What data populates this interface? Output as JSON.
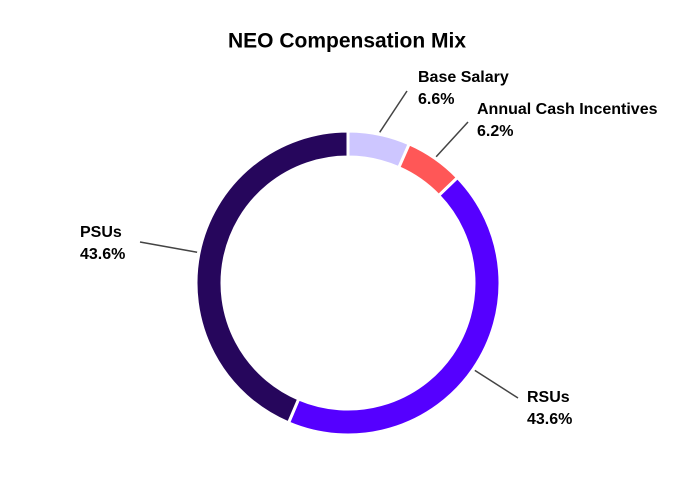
{
  "chart_data": {
    "type": "donut",
    "title": "NEO Compensation Mix",
    "categories": [
      "Base Salary",
      "Annual Cash Incentives",
      "RSUs",
      "PSUs"
    ],
    "values": [
      6.6,
      6.2,
      43.6,
      43.6
    ],
    "value_labels": [
      "6.6%",
      "6.2%",
      "43.6%",
      "43.6%"
    ],
    "colors": [
      "#cdc6ff",
      "#ff5757",
      "#5500ff",
      "#26065c"
    ]
  }
}
